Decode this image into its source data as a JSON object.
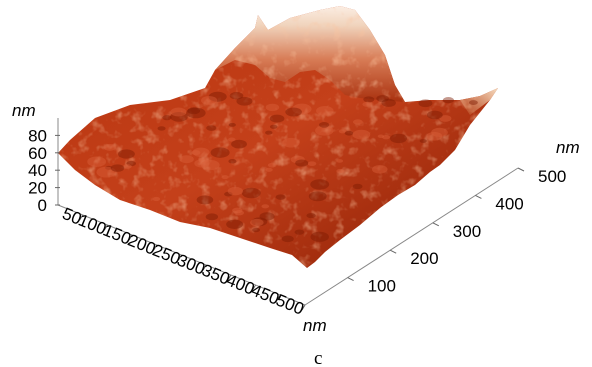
{
  "chart_data": {
    "type": "surface-3d",
    "title": "",
    "x_axis": {
      "label": "nm",
      "ticks": [
        50,
        100,
        150,
        200,
        250,
        300,
        350,
        400,
        450,
        500
      ],
      "range": [
        0,
        500
      ]
    },
    "y_axis": {
      "label": "nm",
      "ticks": [
        100,
        200,
        300,
        400,
        500
      ],
      "range": [
        0,
        500
      ]
    },
    "z_axis": {
      "label": "nm",
      "ticks": [
        0,
        20,
        40,
        60,
        80
      ],
      "range": [
        0,
        100
      ]
    },
    "grid": false,
    "legend": "none",
    "colors": {
      "low": "#5a0c00",
      "mid": "#c23a10",
      "high": "#f2d9bf",
      "peak": "#fff6ea"
    },
    "caption": "c"
  }
}
